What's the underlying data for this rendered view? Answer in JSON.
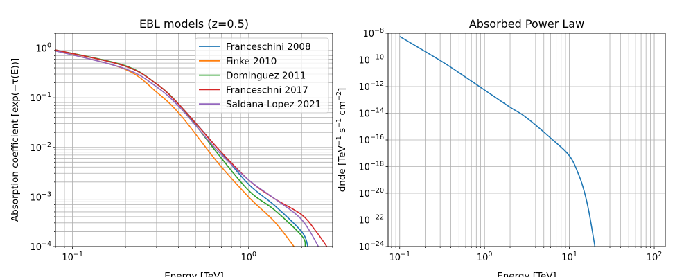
{
  "chart_data": [
    {
      "type": "line",
      "title": "EBL models (z=0.5)",
      "xlabel": "Energy [TeV]",
      "ylabel": "Absorption coefficient [exp(−τ(E))]",
      "xscale": "log",
      "yscale": "log",
      "xlim": [
        0.08,
        3.0
      ],
      "ylim": [
        0.0001,
        2.0
      ],
      "grid": "major and minor",
      "legend_position": "top-right",
      "x_tick_labels": [
        {
          "base": "10",
          "exp": "−1",
          "value": 0.1
        },
        {
          "base": "10",
          "exp": "0",
          "value": 1
        }
      ],
      "y_tick_labels": [
        {
          "base": "10",
          "exp": "0",
          "value": 1
        },
        {
          "base": "10",
          "exp": "−1",
          "value": 0.1
        },
        {
          "base": "10",
          "exp": "−2",
          "value": 0.01
        },
        {
          "base": "10",
          "exp": "−3",
          "value": 0.001
        },
        {
          "base": "10",
          "exp": "−4",
          "value": 0.0001
        }
      ],
      "series": [
        {
          "name": "Franceschini 2008",
          "color": "#1f77b4",
          "x": [
            0.08,
            0.197,
            0.3,
            0.41,
            0.66,
            1.0,
            1.4,
            2.0,
            2.17
          ],
          "y": [
            0.92,
            0.44,
            0.19,
            0.068,
            0.01,
            0.0018,
            0.00068,
            0.0002,
            0.0001
          ]
        },
        {
          "name": "Finke 2010",
          "color": "#ff7f0e",
          "x": [
            0.08,
            0.197,
            0.3,
            0.41,
            0.66,
            1.0,
            1.4,
            1.81
          ],
          "y": [
            0.89,
            0.38,
            0.13,
            0.045,
            0.0052,
            0.001,
            0.00032,
            0.0001
          ]
        },
        {
          "name": "Dominguez 2011",
          "color": "#2ca02c",
          "x": [
            0.08,
            0.197,
            0.3,
            0.41,
            0.66,
            1.0,
            1.4,
            2.0,
            2.1
          ],
          "y": [
            0.92,
            0.45,
            0.19,
            0.068,
            0.0079,
            0.00135,
            0.00055,
            0.000166,
            0.0001
          ]
        },
        {
          "name": "Franceschni 2017",
          "color": "#d62728",
          "x": [
            0.08,
            0.197,
            0.3,
            0.41,
            0.66,
            1.0,
            1.4,
            2.0,
            2.42,
            2.78
          ],
          "y": [
            0.92,
            0.44,
            0.19,
            0.068,
            0.01,
            0.0022,
            0.00093,
            0.00044,
            0.0002,
            0.0001
          ]
        },
        {
          "name": "Saldana-Lopez 2021",
          "color": "#9467bd",
          "x": [
            0.08,
            0.197,
            0.3,
            0.41,
            0.66,
            1.0,
            1.4,
            2.0,
            2.49
          ],
          "y": [
            0.88,
            0.39,
            0.166,
            0.062,
            0.0089,
            0.0022,
            0.00093,
            0.00035,
            0.0001
          ]
        }
      ]
    },
    {
      "type": "line",
      "title": "Absorbed Power Law",
      "xlabel": "Energy [TeV]",
      "ylabel": {
        "text": "dnde [TeV",
        "parts": [
          {
            "unit": "TeV",
            "exp": "−1"
          },
          {
            "unit": "s",
            "exp": "−1"
          },
          {
            "unit": "cm",
            "exp": "−2"
          }
        ]
      },
      "xscale": "log",
      "yscale": "log",
      "xlim": [
        0.073,
        135
      ],
      "ylim": [
        1e-24,
        1e-08
      ],
      "grid": "major and minor",
      "x_tick_labels": [
        {
          "base": "10",
          "exp": "−1",
          "value": 0.1
        },
        {
          "base": "10",
          "exp": "0",
          "value": 1
        },
        {
          "base": "10",
          "exp": "1",
          "value": 10
        },
        {
          "base": "10",
          "exp": "2",
          "value": 100
        }
      ],
      "y_tick_labels": [
        {
          "base": "10",
          "exp": "−8",
          "value": 1e-08
        },
        {
          "base": "10",
          "exp": "−10",
          "value": 1e-10
        },
        {
          "base": "10",
          "exp": "−12",
          "value": 1e-12
        },
        {
          "base": "10",
          "exp": "−14",
          "value": 1e-14
        },
        {
          "base": "10",
          "exp": "−16",
          "value": 1e-16
        },
        {
          "base": "10",
          "exp": "−18",
          "value": 1e-18
        },
        {
          "base": "10",
          "exp": "−20",
          "value": 1e-20
        },
        {
          "base": "10",
          "exp": "−22",
          "value": 1e-22
        },
        {
          "base": "10",
          "exp": "−24",
          "value": 1e-24
        }
      ],
      "series": [
        {
          "color": "#1f77b4",
          "x": [
            0.1,
            0.3,
            0.5,
            1,
            2,
            3,
            6,
            10,
            13,
            15,
            17,
            20
          ],
          "y": [
            5.7e-09,
            9.1e-11,
            1.1e-11,
            5.5e-13,
            2.8e-14,
            5.6e-15,
            1.4e-16,
            6.5e-18,
            2.1e-19,
            1.3e-20,
            4e-22,
            1e-24
          ]
        }
      ]
    }
  ]
}
